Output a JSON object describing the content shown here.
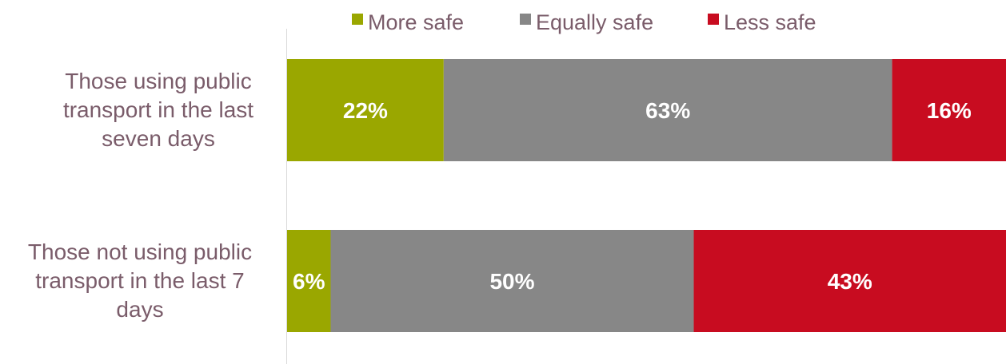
{
  "chart_data": {
    "type": "bar",
    "orientation": "horizontal",
    "stacked": true,
    "title": "",
    "xlabel": "",
    "ylabel": "",
    "categories": [
      "Those using public transport in the last seven days",
      "Those not using public transport in the last 7 days"
    ],
    "series": [
      {
        "name": "More safe",
        "color": "#9aa700",
        "values": [
          22,
          6
        ]
      },
      {
        "name": "Equally safe",
        "color": "#878787",
        "values": [
          63,
          50
        ]
      },
      {
        "name": "Less safe",
        "color": "#c80c20",
        "values": [
          16,
          43
        ]
      }
    ],
    "data_labels": [
      [
        "22%",
        "63%",
        "16%"
      ],
      [
        "6%",
        "50%",
        "43%"
      ]
    ],
    "legend": {
      "position": "top"
    },
    "grid": false,
    "category_label_color": "#7a5c6a",
    "data_label_color": "#ffffff"
  }
}
